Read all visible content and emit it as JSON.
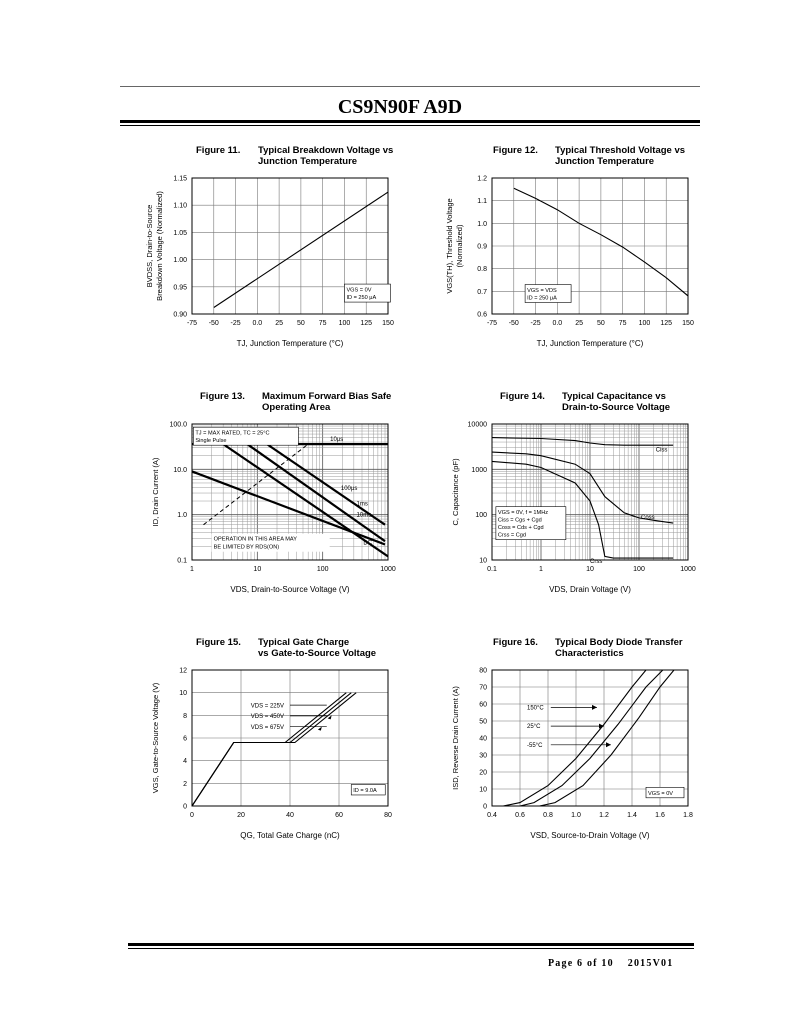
{
  "header": {
    "title": "CS9N90F A9D"
  },
  "footer": {
    "page": "Page 6 of 10",
    "version": "2015V01"
  },
  "figures": {
    "fig11": {
      "number": "Figure 11.",
      "title1": "Typical Breakdown Voltage vs",
      "title2": "Junction Temperature"
    },
    "fig12": {
      "number": "Figure 12.",
      "title1": "Typical Threshold Voltage vs",
      "title2": "Junction Temperature"
    },
    "fig13": {
      "number": "Figure 13.",
      "title1": "Maximum Forward Bias Safe",
      "title2": "Operating Area"
    },
    "fig14": {
      "number": "Figure 14.",
      "title1": "Typical Capacitance vs",
      "title2": "Drain-to-Source Voltage"
    },
    "fig15": {
      "number": "Figure 15.",
      "title1": "Typical Gate Charge",
      "title2": "vs Gate-to-Source Voltage"
    },
    "fig16": {
      "number": "Figure 16.",
      "title1": "Typical Body Diode Transfer",
      "title2": "Characteristics"
    }
  },
  "chart_data": [
    {
      "id": "fig11",
      "type": "line",
      "xlabel": "TJ, Junction Temperature (°C)",
      "ylabel1": "BVDSS, Drain-to-Source",
      "ylabel2": "Breakdown Voltage (Normalized)",
      "xlim": [
        -75,
        150
      ],
      "ylim": [
        0.9,
        1.15
      ],
      "xticks": [
        "-75",
        "-50",
        "-25",
        "0.0",
        "25",
        "50",
        "75",
        "100",
        "125",
        "150"
      ],
      "yticks": [
        "0.90",
        "0.95",
        "1.00",
        "1.05",
        "1.10",
        "1.15"
      ],
      "grid": true,
      "annotation": [
        "VGS = 0V",
        "ID = 250 μA"
      ],
      "series": [
        {
          "x": [
            -50,
            150
          ],
          "y": [
            0.912,
            1.124
          ]
        }
      ]
    },
    {
      "id": "fig12",
      "type": "line",
      "xlabel": "TJ, Junction Temperature (°C)",
      "ylabel1": "VGS(TH), Threshold Voltage",
      "ylabel2": "(Normalized)",
      "xlim": [
        -75,
        150
      ],
      "ylim": [
        0.6,
        1.2
      ],
      "xticks": [
        "-75",
        "-50",
        "-25",
        "0.0",
        "25",
        "50",
        "75",
        "100",
        "125",
        "150"
      ],
      "yticks": [
        "0.6",
        "0.7",
        "0.8",
        "0.9",
        "1.0",
        "1.1",
        "1.2"
      ],
      "grid": true,
      "annotation": [
        "VGS = VDS",
        "ID = 250 μA"
      ],
      "series": [
        {
          "x": [
            -50,
            -25,
            0,
            25,
            50,
            75,
            100,
            125,
            150
          ],
          "y": [
            1.155,
            1.11,
            1.06,
            1.0,
            0.95,
            0.895,
            0.83,
            0.76,
            0.68
          ]
        }
      ]
    },
    {
      "id": "fig13",
      "type": "line",
      "xscale": "log",
      "yscale": "log",
      "xlabel": "VDS, Drain-to-Source Voltage (V)",
      "ylabel1": "ID, Drain Current (A)",
      "xlim": [
        1,
        1000
      ],
      "ylim": [
        0.1,
        100
      ],
      "xticks": [
        "1",
        "10",
        "100",
        "1000"
      ],
      "yticks": [
        "0.1",
        "1.0",
        "10.0",
        "100.0"
      ],
      "grid": true,
      "annotation": [
        "TJ = MAX RATED, TC = 25°C",
        "Single Pulse"
      ],
      "region_note": [
        "OPERATION IN THIS AREA MAY",
        "BE LIMITED BY RDS(ON)"
      ],
      "series": [
        {
          "name": "10μs",
          "x": [
            1,
            1000
          ],
          "y": [
            36,
            36
          ]
        },
        {
          "name": "100μs",
          "x": [
            14,
            900
          ],
          "y": [
            36,
            0.6
          ]
        },
        {
          "name": "1ms",
          "x": [
            7,
            900
          ],
          "y": [
            36,
            0.26
          ]
        },
        {
          "name": "10ms",
          "x": [
            3,
            1000
          ],
          "y": [
            36,
            0.12
          ]
        },
        {
          "name": "DC",
          "x": [
            1,
            900
          ],
          "y": [
            9,
            0.22
          ]
        },
        {
          "name": "RDS(ON) limit",
          "x": [
            1.5,
            60
          ],
          "y": [
            0.6,
            36
          ]
        }
      ]
    },
    {
      "id": "fig14",
      "type": "line",
      "xscale": "log",
      "yscale": "log",
      "xlabel": "VDS, Drain Voltage (V)",
      "ylabel1": "C, Capacitance (pF)",
      "xlim": [
        0.1,
        1000
      ],
      "ylim": [
        10,
        10000
      ],
      "xticks": [
        "0.1",
        "1",
        "10",
        "100",
        "1000"
      ],
      "yticks": [
        "10",
        "100",
        "1000",
        "10000"
      ],
      "grid": true,
      "annotation": [
        "VGS = 0V, f = 1MHz",
        "Ciss = Cgs + Cgd",
        "Coss = Cds + Cgd",
        "Crss = Cgd"
      ],
      "series": [
        {
          "name": "Ciss",
          "x": [
            0.1,
            1,
            5,
            10,
            20,
            50,
            500
          ],
          "y": [
            5000,
            4800,
            4300,
            3800,
            3500,
            3400,
            3400
          ]
        },
        {
          "name": "Coss",
          "x": [
            0.1,
            0.5,
            1,
            5,
            10,
            20,
            50,
            100,
            200,
            500
          ],
          "y": [
            2400,
            2200,
            2000,
            1300,
            800,
            250,
            110,
            85,
            75,
            65
          ]
        },
        {
          "name": "Crss",
          "x": [
            0.1,
            0.5,
            1,
            5,
            10,
            15,
            20,
            30,
            500
          ],
          "y": [
            1500,
            1300,
            1100,
            500,
            200,
            60,
            12,
            11,
            11
          ]
        }
      ]
    },
    {
      "id": "fig15",
      "type": "line",
      "xlabel": "QG, Total Gate Charge (nC)",
      "ylabel1": "VGS, Gate-to-Source Voltage (V)",
      "xlim": [
        0,
        80
      ],
      "ylim": [
        0,
        12
      ],
      "xticks": [
        "0",
        "20",
        "40",
        "60",
        "80"
      ],
      "yticks": [
        "0",
        "2",
        "4",
        "6",
        "8",
        "10",
        "12"
      ],
      "grid": true,
      "annotation": [
        "ID = 9.0A"
      ],
      "legend_labels": [
        "VDS = 225V",
        "VDS = 450V",
        "VDS = 675V"
      ],
      "series": [
        {
          "name": "VDS = 225V",
          "x": [
            0,
            17,
            38,
            63
          ],
          "y": [
            0,
            5.6,
            5.6,
            10
          ]
        },
        {
          "name": "VDS = 450V",
          "x": [
            0,
            17,
            40,
            65
          ],
          "y": [
            0,
            5.6,
            5.6,
            10
          ]
        },
        {
          "name": "VDS = 675V",
          "x": [
            0,
            17,
            42,
            67
          ],
          "y": [
            0,
            5.6,
            5.6,
            10
          ]
        }
      ]
    },
    {
      "id": "fig16",
      "type": "line",
      "xlabel": "VSD, Source-to-Drain Voltage (V)",
      "ylabel1": "ISD, Reverse Drain Current (A)",
      "xlim": [
        0.4,
        1.8
      ],
      "ylim": [
        0,
        80
      ],
      "xticks": [
        "0.4",
        "0.6",
        "0.8",
        "1.0",
        "1.2",
        "1.4",
        "1.6",
        "1.8"
      ],
      "yticks": [
        "0",
        "10",
        "20",
        "30",
        "40",
        "50",
        "60",
        "70",
        "80"
      ],
      "grid": true,
      "annotation": [
        "VGS = 0V"
      ],
      "series": [
        {
          "name": "150°C",
          "x": [
            0.48,
            0.6,
            0.8,
            1.0,
            1.2,
            1.4,
            1.5
          ],
          "y": [
            0,
            2,
            12,
            28,
            48,
            70,
            80
          ]
        },
        {
          "name": "25°C",
          "x": [
            0.6,
            0.7,
            0.9,
            1.1,
            1.3,
            1.5,
            1.62
          ],
          "y": [
            0,
            2,
            12,
            28,
            48,
            70,
            80
          ]
        },
        {
          "name": "-55°C",
          "x": [
            0.74,
            0.85,
            1.05,
            1.25,
            1.45,
            1.6,
            1.7
          ],
          "y": [
            0,
            2,
            12,
            30,
            52,
            70,
            80
          ]
        }
      ]
    }
  ]
}
